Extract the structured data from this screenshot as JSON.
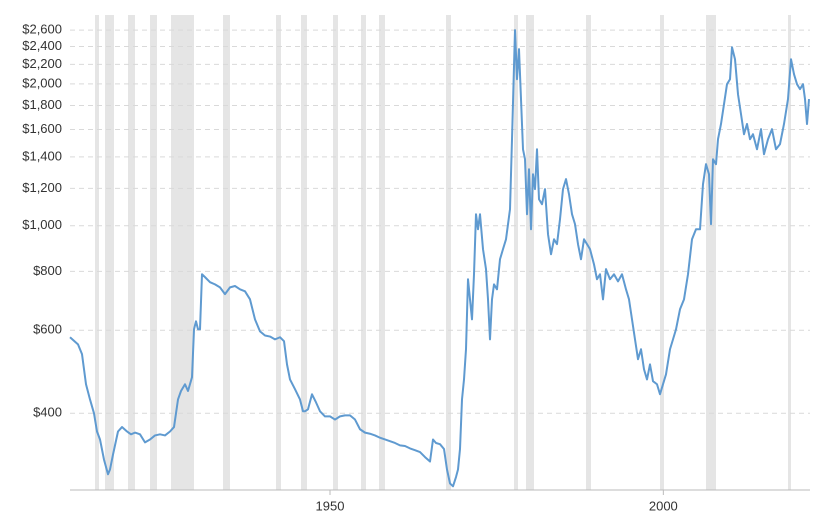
{
  "chart_data": {
    "type": "line",
    "log_y": true,
    "grid": true,
    "color": "#5f9ad0",
    "recession_color": "#e5e5e5",
    "xlim": [
      1911,
      2022
    ],
    "xticks": [
      1950,
      2000
    ],
    "ylim": [
      275,
      2800
    ],
    "yticks": [
      {
        "value": 400,
        "label": "$400"
      },
      {
        "value": 600,
        "label": "$600"
      },
      {
        "value": 800,
        "label": "$800"
      },
      {
        "value": 1000,
        "label": "$1,000"
      },
      {
        "value": 1200,
        "label": "$1,200"
      },
      {
        "value": 1400,
        "label": "$1,400"
      },
      {
        "value": 1600,
        "label": "$1,600"
      },
      {
        "value": 1800,
        "label": "$1,800"
      },
      {
        "value": 2000,
        "label": "$2,000"
      },
      {
        "value": 2200,
        "label": "$2,200"
      },
      {
        "value": 2400,
        "label": "$2,400"
      },
      {
        "value": 2600,
        "label": "$2,600"
      }
    ],
    "recessions": [
      [
        1914.75,
        1915.35
      ],
      [
        1916.25,
        1917.6
      ],
      [
        1919.7,
        1920.75
      ],
      [
        1923.0,
        1924.05
      ],
      [
        1926.15,
        1929.6
      ],
      [
        1933.95,
        1935.0
      ],
      [
        1941.9,
        1942.65
      ],
      [
        1945.65,
        1946.55
      ],
      [
        1950.45,
        1951.2
      ],
      [
        1954.65,
        1955.4
      ],
      [
        1957.35,
        1958.25
      ],
      [
        1967.4,
        1968.15
      ],
      [
        1977.6,
        1978.2
      ],
      [
        1979.4,
        1980.6
      ],
      [
        1988.4,
        1989.15
      ],
      [
        1999.5,
        2000.1
      ],
      [
        2006.4,
        2007.9
      ],
      [
        2018.7,
        2019.15
      ]
    ],
    "x": [
      1911.0,
      1912.2,
      1912.8,
      1913.4,
      1914.0,
      1914.6,
      1915.05,
      1915.5,
      1916.1,
      1916.7,
      1917.0,
      1917.45,
      1918.2,
      1918.8,
      1919.55,
      1920.15,
      1920.75,
      1921.5,
      1922.25,
      1923.0,
      1923.75,
      1924.5,
      1925.25,
      1926.0,
      1926.6,
      1927.2,
      1927.65,
      1928.25,
      1928.7,
      1929.3,
      1929.6,
      1929.9,
      1930.2,
      1930.5,
      1930.8,
      1931.25,
      1932.0,
      1932.75,
      1933.5,
      1934.25,
      1935.0,
      1935.75,
      1936.5,
      1937.25,
      1938.0,
      1938.75,
      1939.5,
      1940.25,
      1941.0,
      1941.75,
      1942.5,
      1943.1,
      1943.55,
      1944.0,
      1944.75,
      1945.5,
      1945.95,
      1946.25,
      1946.7,
      1947.3,
      1947.9,
      1948.5,
      1949.25,
      1950.0,
      1950.75,
      1951.5,
      1952.25,
      1953.0,
      1953.75,
      1954.5,
      1955.25,
      1956.0,
      1956.75,
      1957.5,
      1958.25,
      1959.0,
      1959.75,
      1960.5,
      1961.25,
      1962.0,
      1962.75,
      1963.5,
      1964.25,
      1965.0,
      1965.45,
      1965.9,
      1966.5,
      1967.1,
      1967.55,
      1968.0,
      1968.45,
      1968.9,
      1969.2,
      1969.5,
      1969.8,
      1970.1,
      1970.4,
      1970.7,
      1971.0,
      1971.3,
      1971.6,
      1971.9,
      1972.2,
      1972.5,
      1972.95,
      1973.4,
      1973.7,
      1974.0,
      1974.3,
      1974.6,
      1975.05,
      1975.5,
      1975.95,
      1976.4,
      1977.0,
      1977.3,
      1977.75,
      1978.05,
      1978.35,
      1978.65,
      1978.95,
      1979.25,
      1979.55,
      1979.85,
      1980.15,
      1980.45,
      1980.75,
      1981.05,
      1981.35,
      1981.8,
      1982.25,
      1982.7,
      1983.15,
      1983.6,
      1984.05,
      1984.5,
      1984.95,
      1985.4,
      1985.85,
      1986.3,
      1986.75,
      1987.2,
      1987.65,
      1988.1,
      1988.55,
      1989.0,
      1989.6,
      1990.05,
      1990.5,
      1990.95,
      1991.4,
      1992.0,
      1992.6,
      1993.2,
      1993.8,
      1994.4,
      1994.85,
      1995.3,
      1995.75,
      1996.2,
      1996.65,
      1997.1,
      1997.55,
      1998.0,
      1998.45,
      1999.05,
      1999.5,
      1999.95,
      2000.4,
      2001.0,
      2001.45,
      2001.9,
      2002.5,
      2003.1,
      2003.7,
      2004.3,
      2004.9,
      2005.5,
      2005.95,
      2006.4,
      2006.85,
      2007.15,
      2007.45,
      2007.9,
      2008.2,
      2008.65,
      2009.1,
      2009.55,
      2010.0,
      2010.3,
      2010.75,
      2011.2,
      2011.65,
      2012.1,
      2012.55,
      2013.0,
      2013.45,
      2014.05,
      2014.65,
      2015.1,
      2015.7,
      2016.3,
      2016.9,
      2017.5,
      2018.1,
      2018.7,
      2019.15,
      2019.6,
      2020.05,
      2020.5,
      2020.95,
      2021.25,
      2021.55,
      2021.85
    ],
    "values": [
      580,
      560,
      534,
      461,
      428,
      400,
      366,
      352,
      319,
      297,
      304,
      327,
      366,
      374,
      366,
      361,
      364,
      361,
      347,
      352,
      359,
      361,
      359,
      366,
      374,
      428,
      446,
      461,
      446,
      477,
      603,
      627,
      603,
      603,
      789,
      778,
      759,
      751,
      740,
      716,
      740,
      745,
      733,
      726,
      698,
      633,
      597,
      585,
      582,
      574,
      580,
      569,
      508,
      472,
      450,
      428,
      404,
      404,
      408,
      439,
      422,
      404,
      394,
      394,
      388,
      394,
      396,
      396,
      388,
      370,
      364,
      362,
      359,
      355,
      352,
      349,
      346,
      342,
      341,
      337,
      334,
      331,
      323,
      316,
      352,
      346,
      344,
      336,
      304,
      284,
      280,
      293,
      304,
      336,
      428,
      472,
      547,
      770,
      698,
      633,
      789,
      1058,
      983,
      1058,
      892,
      809,
      698,
      574,
      698,
      751,
      733,
      849,
      892,
      936,
      1084,
      1526,
      2600,
      2046,
      2370,
      1857,
      1453,
      1384,
      1058,
      1318,
      983,
      1286,
      1196,
      1453,
      1138,
      1111,
      1196,
      960,
      870,
      936,
      914,
      1032,
      1196,
      1256,
      1167,
      1058,
      1008,
      914,
      849,
      936,
      914,
      892,
      828,
      770,
      789,
      698,
      809,
      770,
      789,
      762,
      789,
      733,
      698,
      633,
      574,
      521,
      547,
      496,
      472,
      508,
      468,
      461,
      439,
      461,
      484,
      547,
      574,
      603,
      665,
      698,
      789,
      936,
      983,
      983,
      1225,
      1351,
      1286,
      1008,
      1384,
      1351,
      1526,
      1644,
      1811,
      1997,
      2046,
      2392,
      2256,
      1901,
      1725,
      1564,
      1644,
      1526,
      1564,
      1453,
      1603,
      1418,
      1526,
      1603,
      1453,
      1490,
      1644,
      1857,
      2256,
      2097,
      1997,
      1949,
      1997,
      1857,
      1644,
      1857
    ]
  }
}
